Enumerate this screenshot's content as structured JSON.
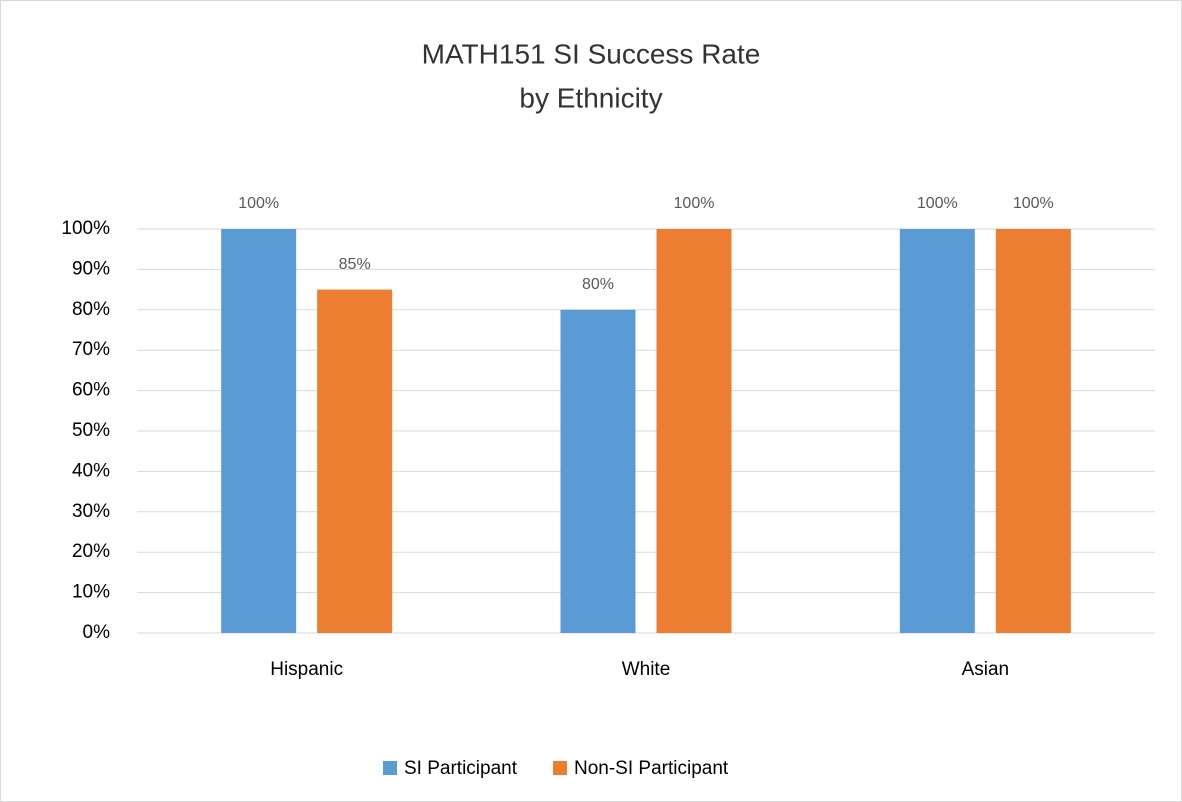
{
  "chart_data": {
    "type": "bar",
    "title": [
      "MATH151 SI Success Rate",
      "by Ethnicity"
    ],
    "categories": [
      "Hispanic",
      "White",
      "Asian"
    ],
    "series": [
      {
        "name": "SI Participant",
        "color": "#5b9bd5",
        "values": [
          100,
          80,
          100
        ],
        "value_labels": [
          "100%",
          "80%",
          "100%"
        ]
      },
      {
        "name": "Non-SI Participant",
        "color": "#ed7d31",
        "values": [
          85,
          100,
          100
        ],
        "value_labels": [
          "85%",
          "100%",
          "100%"
        ]
      }
    ],
    "ylim": [
      0,
      100
    ],
    "yticks": [
      {
        "value": 0,
        "label": "0%"
      },
      {
        "value": 10,
        "label": "10%"
      },
      {
        "value": 20,
        "label": "20%"
      },
      {
        "value": 30,
        "label": "30%"
      },
      {
        "value": 40,
        "label": "40%"
      },
      {
        "value": 50,
        "label": "50%"
      },
      {
        "value": 60,
        "label": "60%"
      },
      {
        "value": 70,
        "label": "70%"
      },
      {
        "value": 80,
        "label": "80%"
      },
      {
        "value": 90,
        "label": "90%"
      },
      {
        "value": 100,
        "label": "100%"
      }
    ],
    "grid": true,
    "legend": "bottom"
  }
}
